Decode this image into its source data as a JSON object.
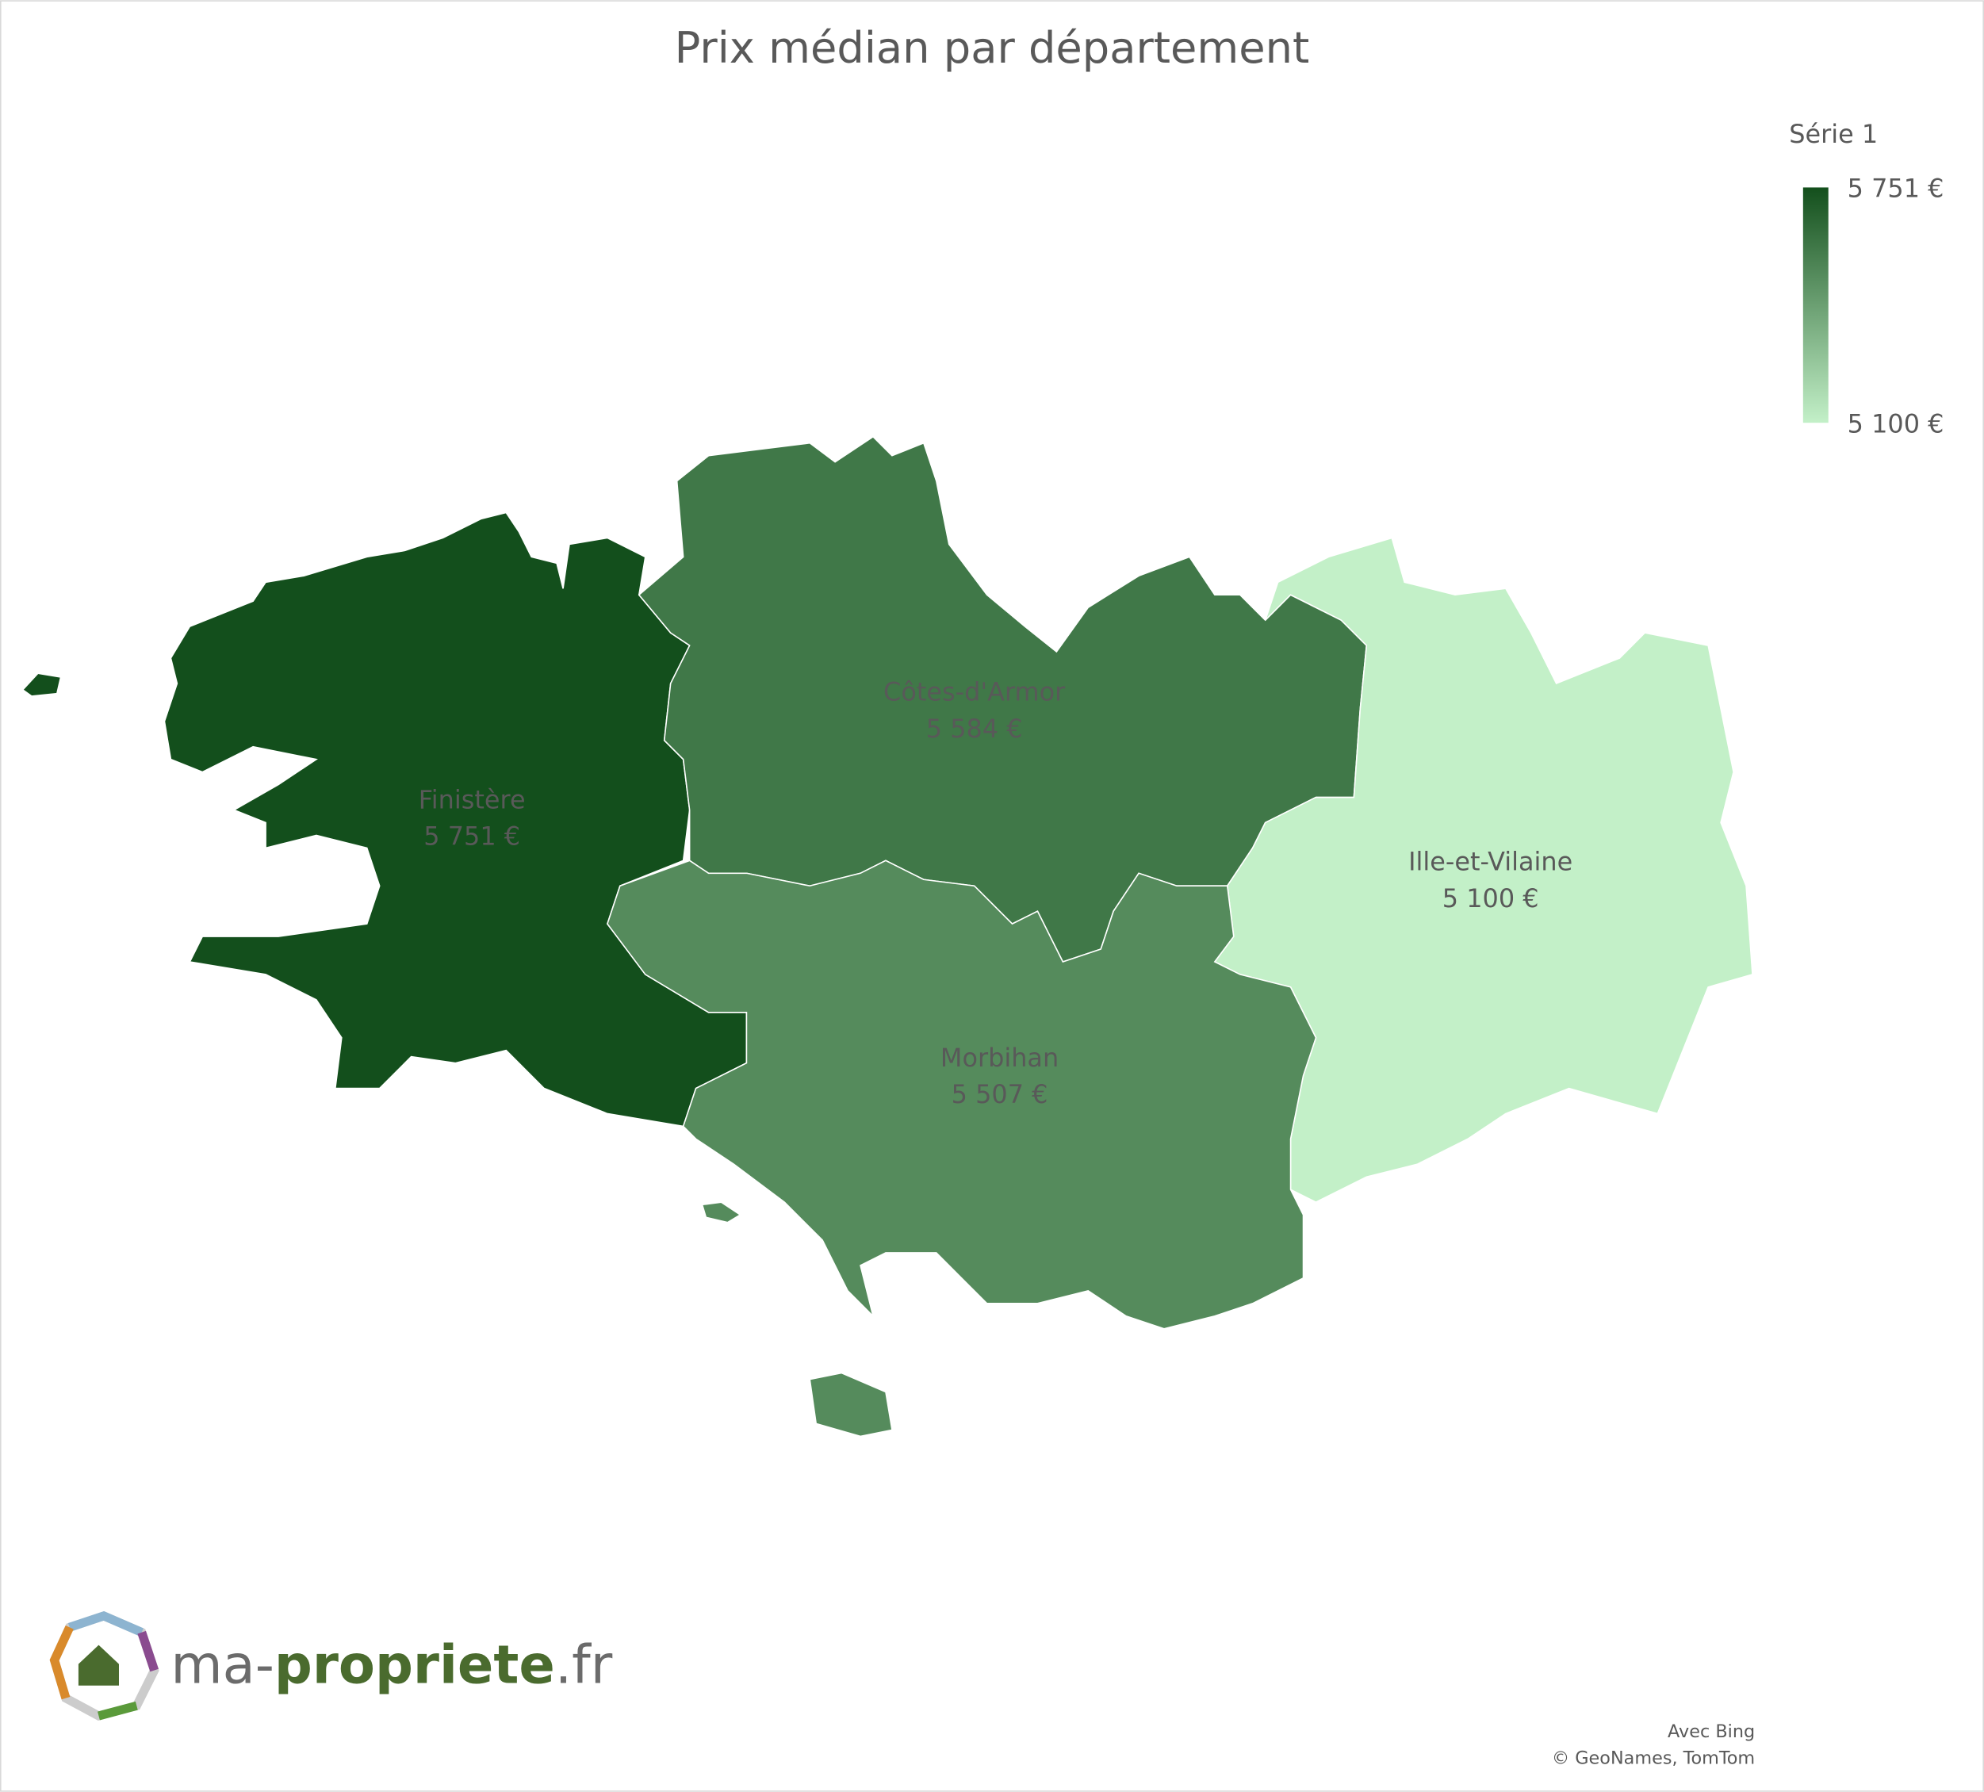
{
  "chart_data": {
    "type": "choropleth",
    "title": "Prix médian par département",
    "categories": [
      "Finistère",
      "Côtes-d'Armor",
      "Ille-et-Vilaine",
      "Morbihan"
    ],
    "values": [
      5751,
      5584,
      5100,
      5507
    ],
    "value_labels": [
      "5 751 €",
      "5 584 €",
      "5 100 €",
      "5 507 €"
    ],
    "legend_title": "Série 1",
    "clim": [
      5100,
      5751
    ],
    "cticks": [
      {
        "value": 5751,
        "label": "5 751 €"
      },
      {
        "value": 5100,
        "label": "5 100 €"
      }
    ],
    "colors": [
      "#c3f0c8",
      "#134f1c"
    ],
    "attribution": [
      "Avec Bing",
      "© GeoNames, TomTom"
    ]
  },
  "logo": {
    "parts": [
      "ma-",
      "propriete",
      ".fr"
    ]
  }
}
